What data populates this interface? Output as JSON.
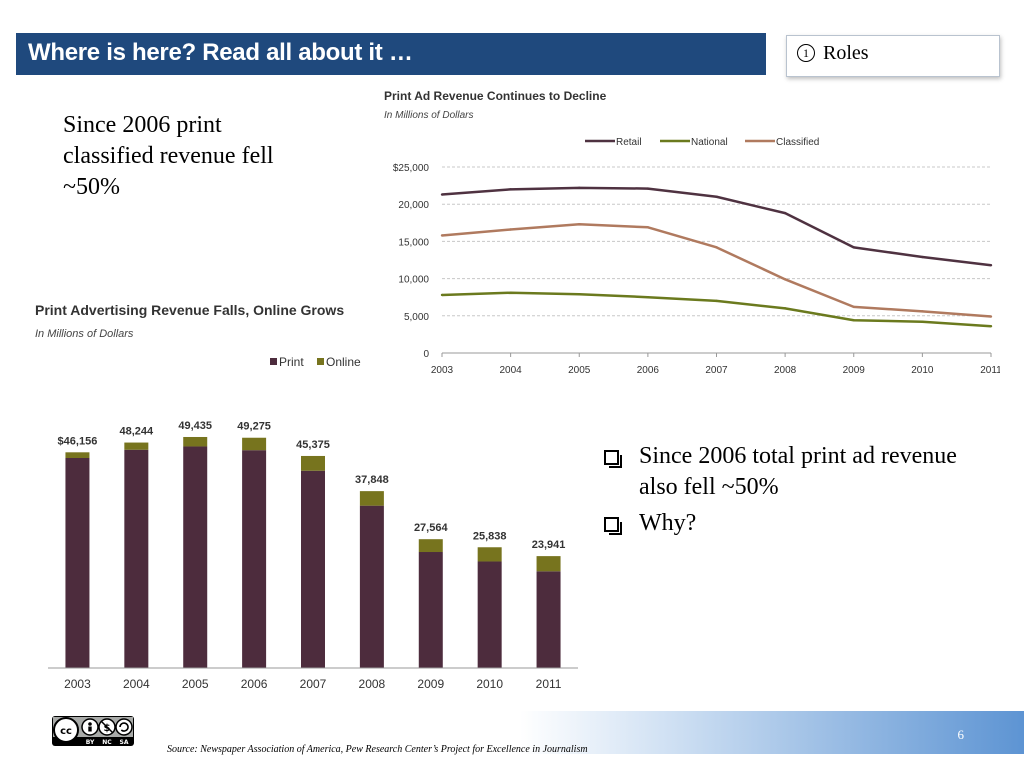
{
  "header": {
    "title": "Where is here?  Read all about it …"
  },
  "roles": {
    "number": "1",
    "label": "Roles"
  },
  "left_note": {
    "text": "Since 2006 print classified revenue fell ~50%"
  },
  "bullets": [
    "Since 2006 total print ad revenue also fell ~50%",
    "Why?"
  ],
  "footer": {
    "source": "Source:  Newspaper Association of America, Pew Research Center’s Project for Excellence in Journalism",
    "slide_number": "6",
    "license_icon": "creative-commons-by-nc-sa-icon",
    "license_text": [
      "BY",
      "NC",
      "SA"
    ]
  },
  "chart_data": [
    {
      "type": "line",
      "title": "Print Ad Revenue Continues to Decline",
      "subtitle": "In Millions of Dollars",
      "x": [
        "2003",
        "2004",
        "2005",
        "2006",
        "2007",
        "2008",
        "2009",
        "2010",
        "2011"
      ],
      "series": [
        {
          "name": "Retail",
          "color": "#4f3241",
          "values": [
            21300,
            22000,
            22200,
            22100,
            21000,
            18800,
            14200,
            12900,
            11800
          ]
        },
        {
          "name": "National",
          "color": "#6b7a1e",
          "values": [
            7800,
            8100,
            7900,
            7500,
            7000,
            6000,
            4400,
            4200,
            3600
          ]
        },
        {
          "name": "Classified",
          "color": "#b07a5f",
          "values": [
            15800,
            16600,
            17300,
            16900,
            14200,
            9900,
            6200,
            5600,
            4900
          ]
        }
      ],
      "ylim": [
        0,
        25000
      ],
      "yticks": [
        "0",
        "5,000",
        "10,000",
        "15,000",
        "20,000",
        "$25,000"
      ],
      "legend": "top-right",
      "grid": true
    },
    {
      "type": "bar",
      "stacked": true,
      "title": "Print Advertising Revenue Falls, Online Grows",
      "subtitle": "In Millions of Dollars",
      "categories": [
        "2003",
        "2004",
        "2005",
        "2006",
        "2007",
        "2008",
        "2009",
        "2010",
        "2011"
      ],
      "series": [
        {
          "name": "Print",
          "color": "#4d2c3d",
          "values": [
            44939,
            46703,
            47408,
            46611,
            42209,
            34740,
            24821,
            22795,
            20692
          ]
        },
        {
          "name": "Online",
          "color": "#77741e",
          "values": [
            1217,
            1541,
            2027,
            2664,
            3166,
            3108,
            2743,
            3043,
            3249
          ]
        }
      ],
      "totals": [
        "$46,156",
        "48,244",
        "49,435",
        "49,275",
        "45,375",
        "37,848",
        "27,564",
        "25,838",
        "23,941"
      ],
      "ylim": [
        0,
        52000
      ],
      "legend": "top-right"
    }
  ]
}
